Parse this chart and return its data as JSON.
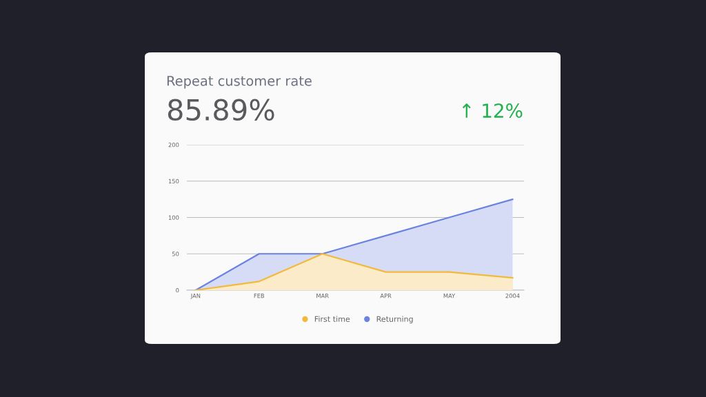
{
  "chart_data": {
    "type": "area",
    "title": "Repeat customer rate",
    "annotations": [
      "85.89%",
      "↑ 12%"
    ],
    "categories": [
      "JAN",
      "FEB",
      "MAR",
      "APR",
      "MAY",
      "2004"
    ],
    "series": [
      {
        "name": "Returning",
        "color": "#6b83e0",
        "values": [
          0,
          50,
          50,
          75,
          100,
          125
        ]
      },
      {
        "name": "First time",
        "color": "#f2b93b",
        "values": [
          0,
          12,
          50,
          25,
          25,
          17
        ]
      }
    ],
    "ylim": [
      0,
      200
    ],
    "yticks": [
      0,
      50,
      100,
      150,
      200
    ],
    "grid": "y",
    "legend": "bottom",
    "marker": "none",
    "line_style": "solid"
  }
}
